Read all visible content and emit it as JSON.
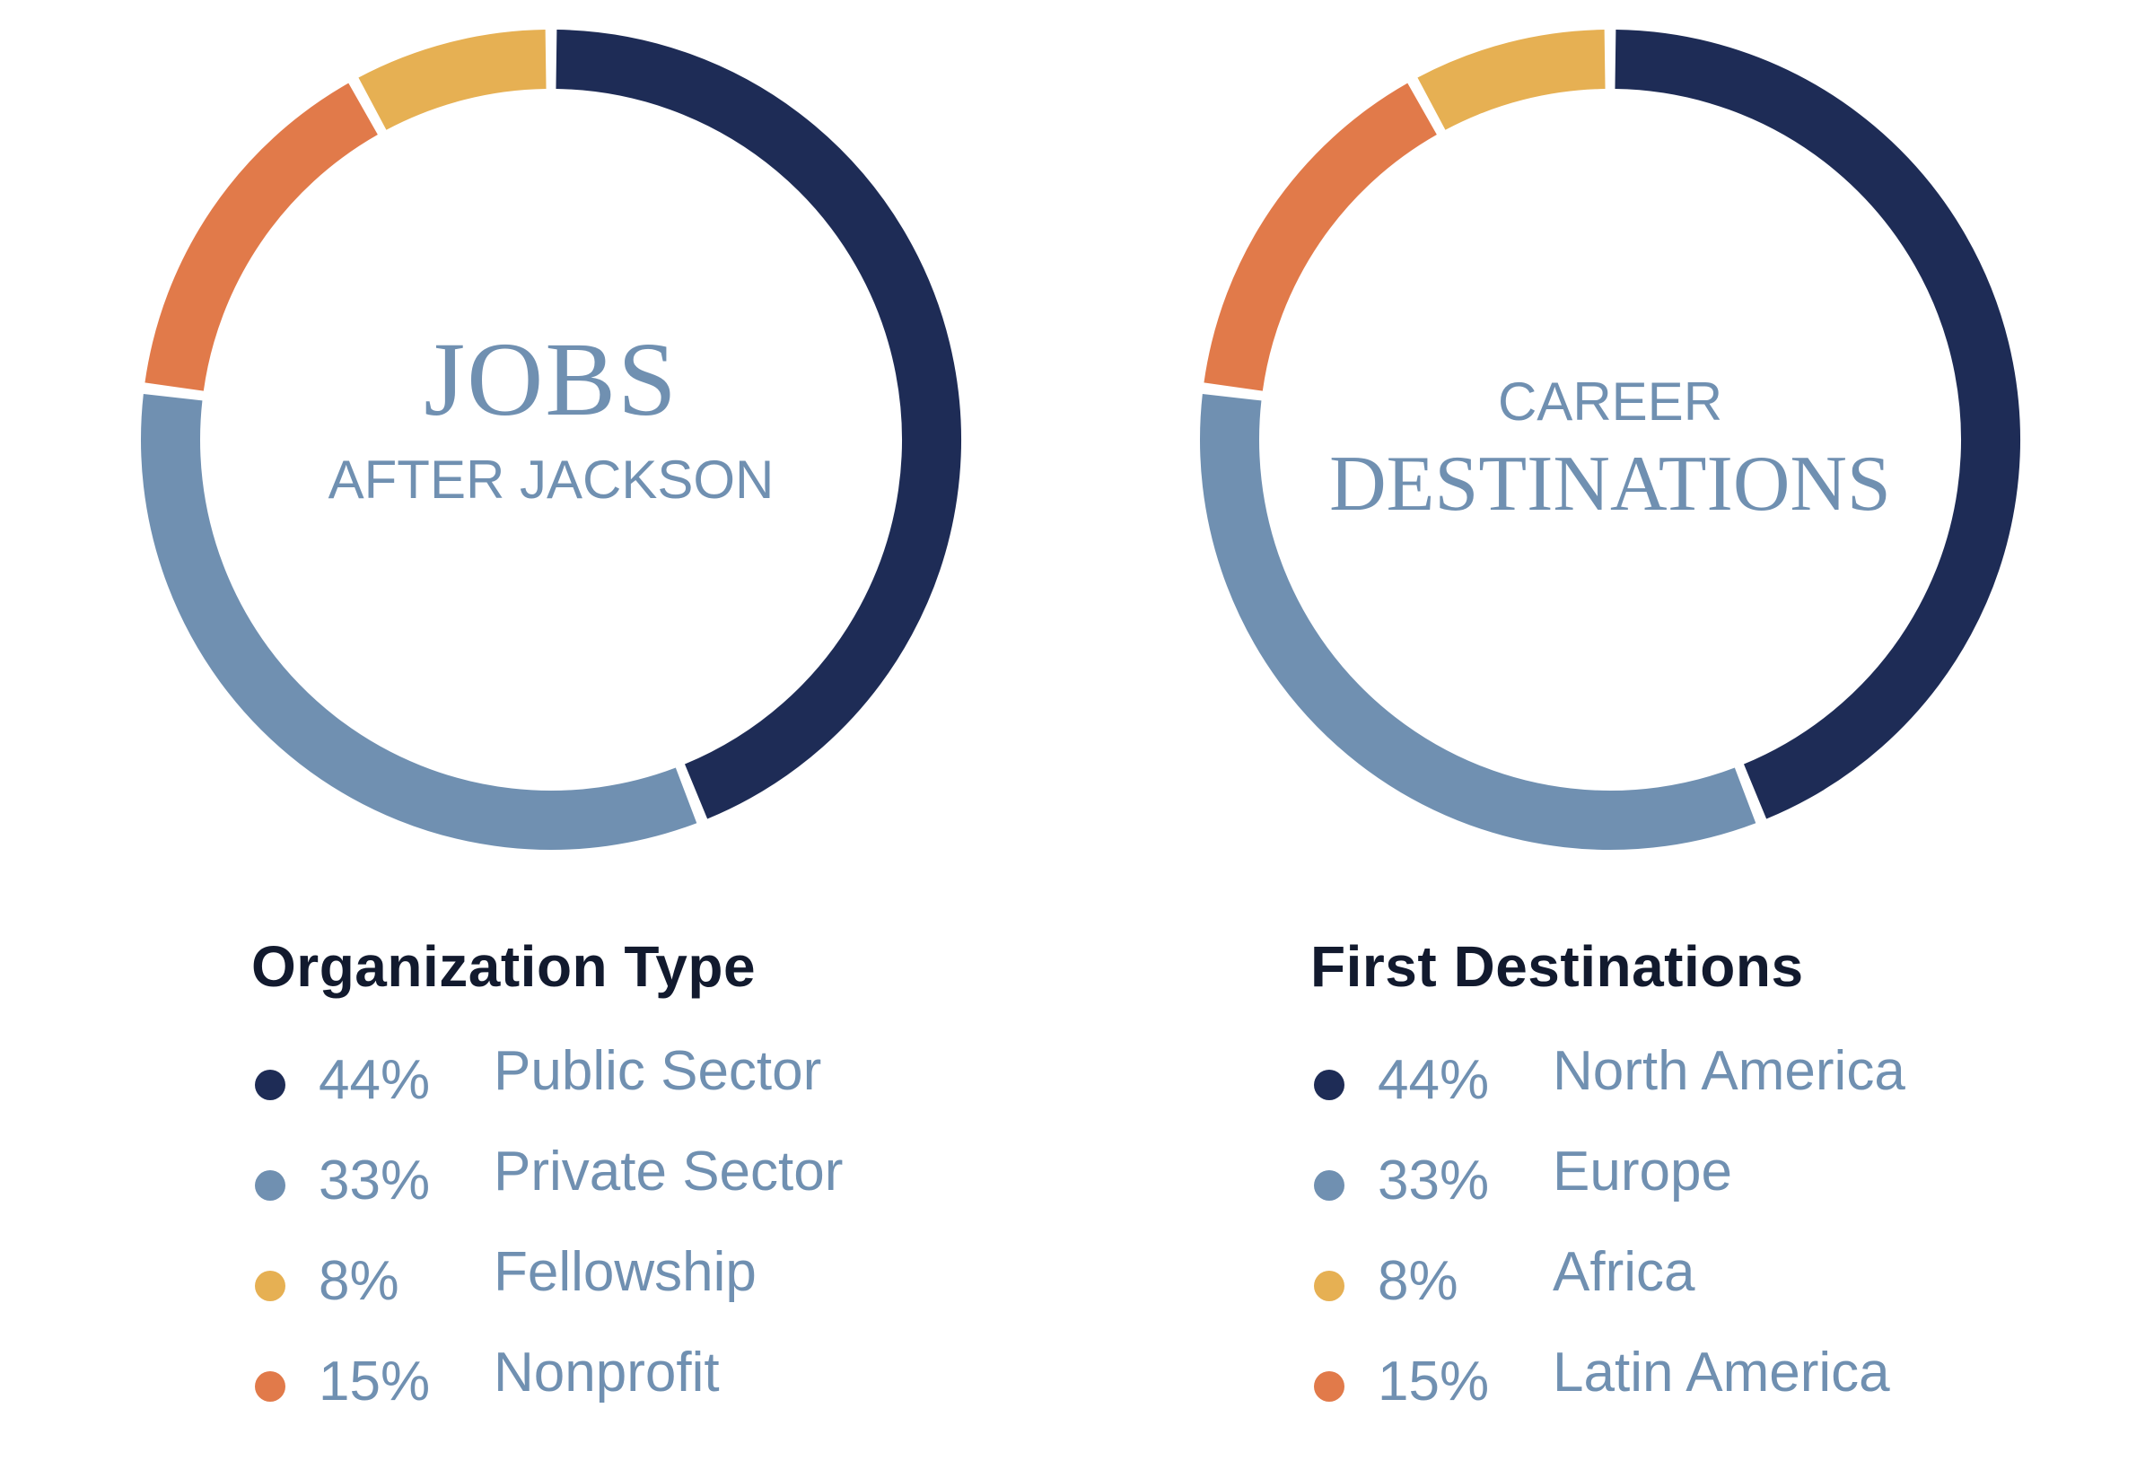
{
  "chart_data": [
    {
      "type": "pie",
      "variant": "donut",
      "center_text": {
        "line1": "JOBS",
        "line2": "AFTER JACKSON"
      },
      "legend_title": "Organization Type",
      "slices": [
        {
          "label": "Public Sector",
          "value": 44,
          "display": "44%",
          "color": "#1e2c56"
        },
        {
          "label": "Private Sector",
          "value": 33,
          "display": "33%",
          "color": "#7090b1"
        },
        {
          "label": "Fellowship",
          "value": 8,
          "display": "8%",
          "color": "#e6b053"
        },
        {
          "label": "Nonprofit",
          "value": 15,
          "display": "15%",
          "color": "#e17a4a"
        }
      ],
      "drawn_order": [
        "Public Sector",
        "Private Sector",
        "Nonprofit",
        "Fellowship"
      ]
    },
    {
      "type": "pie",
      "variant": "donut",
      "center_text": {
        "line1": "CAREER",
        "line2": "DESTINATIONS"
      },
      "legend_title": "First Destinations",
      "slices": [
        {
          "label": "North America",
          "value": 44,
          "display": "44%",
          "color": "#1e2c56"
        },
        {
          "label": "Europe",
          "value": 33,
          "display": "33%",
          "color": "#7090b1"
        },
        {
          "label": "Africa",
          "value": 8,
          "display": "8%",
          "color": "#e6b053"
        },
        {
          "label": "Latin America",
          "value": 15,
          "display": "15%",
          "color": "#e17a4a"
        }
      ],
      "drawn_order": [
        "North America",
        "Europe",
        "Latin America",
        "Africa"
      ]
    }
  ]
}
